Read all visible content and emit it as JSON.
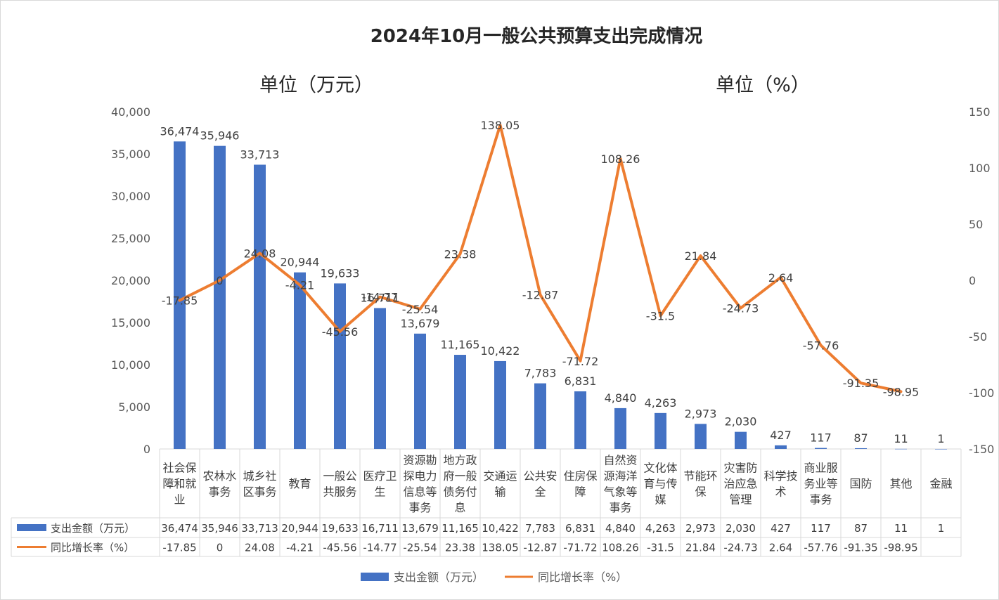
{
  "chart_data": {
    "type": "bar",
    "title": "2024年10月一般公共预算支出完成情况",
    "left_unit": "单位（万元）",
    "right_unit": "单位（%）",
    "categories": [
      "社会保障和就业",
      "农林水事务",
      "城乡社区事务",
      "教育",
      "一般公共服务",
      "医疗卫生",
      "资源勘探电力信息等事务",
      "地方政府一般债务付息",
      "交通运输",
      "公共安全",
      "住房保障",
      "自然资源海洋气象等事务",
      "文化体育与传媒",
      "节能环保",
      "灾害防治应急管理",
      "科学技术",
      "商业服务业等事务",
      "国防",
      "其他",
      "金融"
    ],
    "category_lines": [
      [
        "社会保",
        "障和就",
        "业"
      ],
      [
        "农林水",
        "事务"
      ],
      [
        "城乡社",
        "区事务"
      ],
      [
        "教育"
      ],
      [
        "一般公",
        "共服务"
      ],
      [
        "医疗卫",
        "生"
      ],
      [
        "资源勘",
        "探电力",
        "信息等",
        "事务"
      ],
      [
        "地方政",
        "府一般",
        "债务付",
        "息"
      ],
      [
        "交通运",
        "输"
      ],
      [
        "公共安",
        "全"
      ],
      [
        "住房保",
        "障"
      ],
      [
        "自然资",
        "源海洋",
        "气象等",
        "事务"
      ],
      [
        "文化体",
        "育与传",
        "媒"
      ],
      [
        "节能环",
        "保"
      ],
      [
        "灾害防",
        "治应急",
        "管理"
      ],
      [
        "科学技",
        "术"
      ],
      [
        "商业服",
        "务业等",
        "事务"
      ],
      [
        "国防"
      ],
      [
        "其他"
      ],
      [
        "金融"
      ]
    ],
    "series": [
      {
        "name": "支出金额（万元）",
        "type": "bar",
        "axis": "left",
        "color": "#4472C4",
        "values": [
          36474,
          35946,
          33713,
          20944,
          19633,
          16711,
          13679,
          11165,
          10422,
          7783,
          6831,
          4840,
          4263,
          2973,
          2030,
          427,
          117,
          87,
          11,
          1
        ],
        "labels": [
          "36,474",
          "35,946",
          "33,713",
          "20,944",
          "19,633",
          "16,711",
          "13,679",
          "11,165",
          "10,422",
          "7,783",
          "6,831",
          "4,840",
          "4,263",
          "2,973",
          "2,030",
          "427",
          "117",
          "87",
          "11",
          "1"
        ]
      },
      {
        "name": "同比增长率（%）",
        "type": "line",
        "axis": "right",
        "color": "#ED7D31",
        "values": [
          -17.85,
          0,
          24.08,
          -4.21,
          -45.56,
          -14.77,
          -25.54,
          23.38,
          138.05,
          -12.87,
          -71.72,
          108.26,
          -31.5,
          21.84,
          -24.73,
          2.64,
          -57.76,
          -91.35,
          -98.95,
          null
        ],
        "labels": [
          "-17.85",
          "0",
          "24.08",
          "-4.21",
          "-45.56",
          "-14.77",
          "-25.54",
          "23.38",
          "138.05",
          "-12.87",
          "-71.72",
          "108.26",
          "-31.5",
          "21.84",
          "-24.73",
          "2.64",
          "-57.76",
          "-91.35",
          "-98.95",
          ""
        ]
      }
    ],
    "y_left": {
      "min": 0,
      "max": 40000,
      "ticks": [
        "0",
        "5,000",
        "10,000",
        "15,000",
        "20,000",
        "25,000",
        "30,000",
        "35,000",
        "40,000"
      ]
    },
    "y_right": {
      "min": -150,
      "max": 150,
      "ticks": [
        "150",
        "100",
        "50",
        "0",
        "-50",
        "-100",
        "-150"
      ]
    },
    "grid": false,
    "data_table": true,
    "legend": "bottom"
  }
}
